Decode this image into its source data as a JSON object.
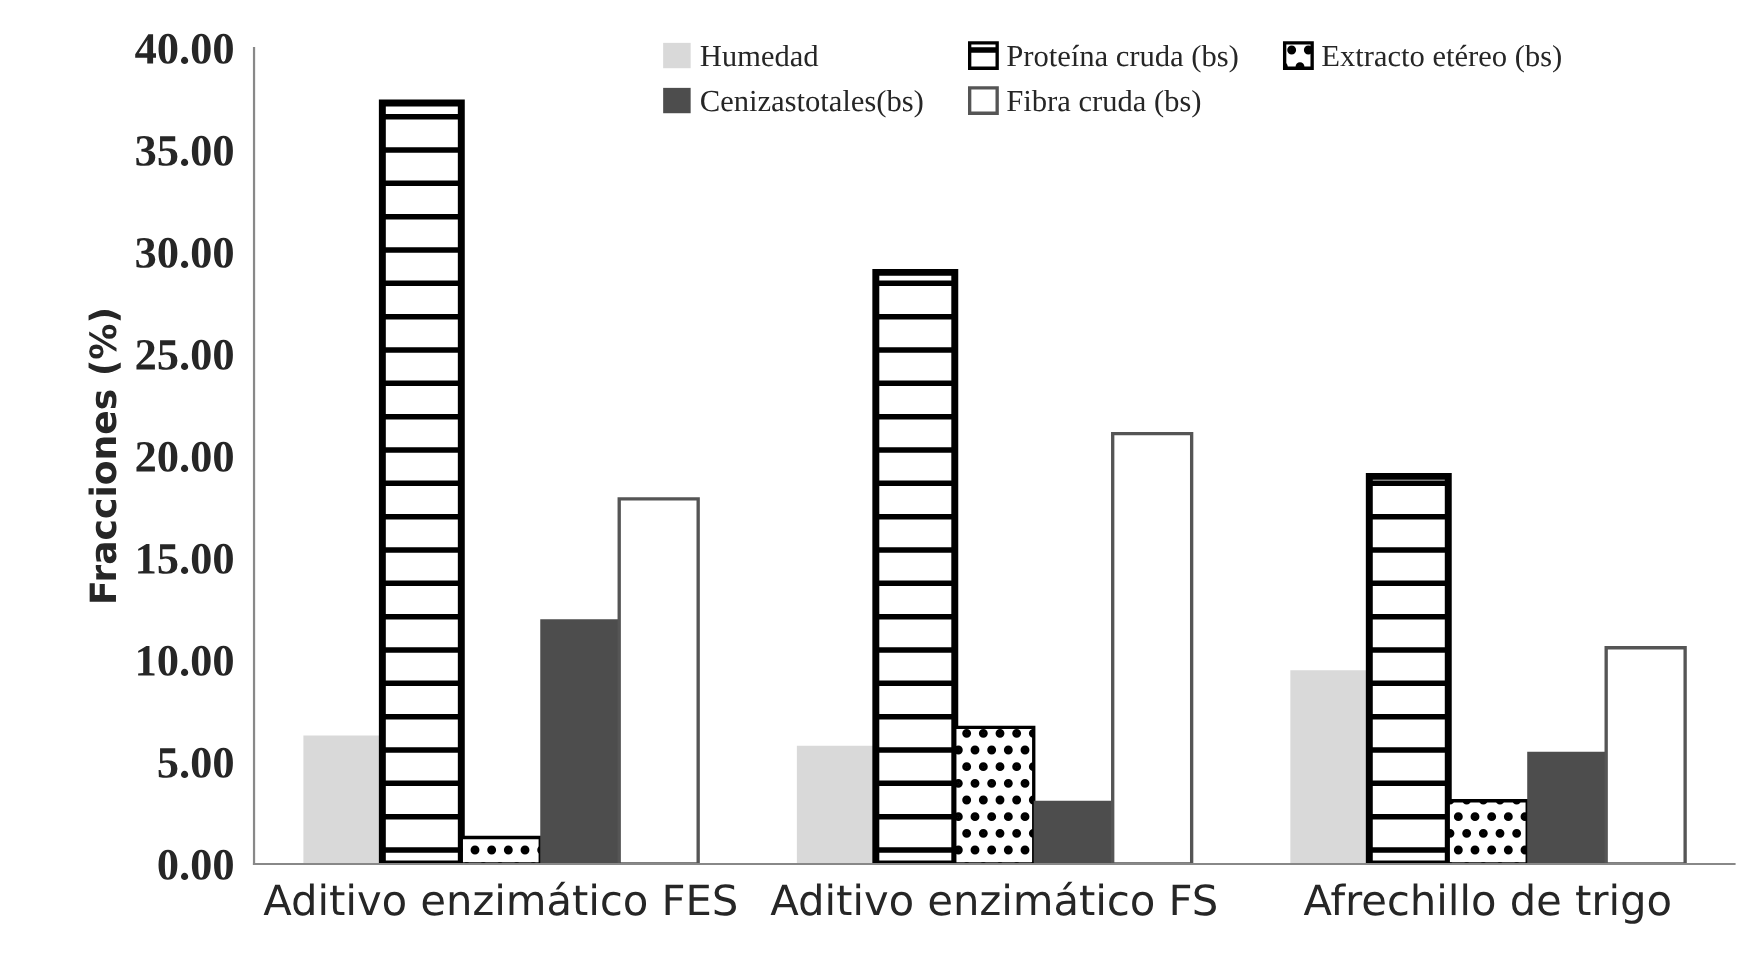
{
  "chart_data": {
    "type": "bar",
    "ylabel": "Fracciones (%)",
    "categories": [
      "Aditivo enzimático FES",
      "Aditivo enzimático FS",
      "Afrechillo de trigo"
    ],
    "series": [
      {
        "name": "Humedad",
        "color": "#d9d9d9",
        "values": [
          6.3,
          5.8,
          9.5
        ]
      },
      {
        "name": "Proteína cruda (bs)",
        "color": "#000000",
        "values": [
          37.3,
          29.0,
          19.0
        ]
      },
      {
        "name": "Extracto etéreo (bs)",
        "color": "#000000",
        "values": [
          1.3,
          6.7,
          3.1
        ]
      },
      {
        "name": "Cenizastotales(bs)",
        "color": "#4d4d4d",
        "values": [
          12.0,
          3.1,
          5.5
        ]
      },
      {
        "name": "Fibra cruda (bs)",
        "color": "#ffffff",
        "values": [
          17.9,
          21.1,
          10.6
        ]
      }
    ],
    "ylim": [
      0,
      40
    ],
    "yticks": [
      {
        "value": 0,
        "label": "0.00"
      },
      {
        "value": 5,
        "label": "5.00"
      },
      {
        "value": 10,
        "label": "10.00"
      },
      {
        "value": 15,
        "label": "15.00"
      },
      {
        "value": 20,
        "label": "20.00"
      },
      {
        "value": 25,
        "label": "25.00"
      },
      {
        "value": 30,
        "label": "30.00"
      },
      {
        "value": 35,
        "label": "35.00"
      },
      {
        "value": 40,
        "label": "40.00"
      }
    ],
    "grid": false,
    "legend": "top"
  }
}
